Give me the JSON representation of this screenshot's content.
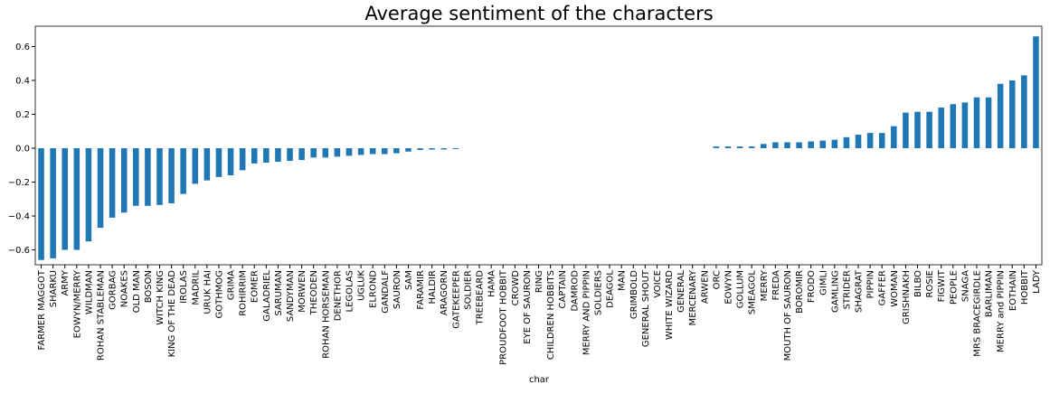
{
  "chart_data": {
    "type": "bar",
    "title": "Average sentiment of the characters",
    "xlabel": "char",
    "color": "#1f77b4",
    "categories": [
      "FARMER MAGGOT",
      "SHARKU",
      "ARMY",
      "EOWYN/MERRY",
      "WILDMAN",
      "ROHAN STABLEMAN",
      "GORBAG",
      "NOAKES",
      "OLD MAN",
      "BOSON",
      "WITCH KING",
      "KING OF THE DEAD",
      "IROLAS",
      "MADRIL",
      "URUK HAI",
      "GOTHMOG",
      "GRIMA",
      "ROHIRRIM",
      "EOMER",
      "GALADRIEL",
      "SARUMAN",
      "SANDYMAN",
      "MORWEN",
      "THEODEN",
      "ROHAN HORSEMAN",
      "DENETHOR",
      "LEGOLAS",
      "UGLUK",
      "ELROND",
      "GANDALF",
      "SAURON",
      "SAM",
      "FARAMIR",
      "HALDIR",
      "ARAGORN",
      "GATEKEEPER",
      "SOLDIER",
      "TREEBEARD",
      "HAMA",
      "PROUDFOOT HOBBIT",
      "CROWD",
      "EYE OF SAURON",
      "RING",
      "CHILDREN HOBBITS",
      "CAPTAIN",
      "DAMROD",
      "MERRY AND PIPPIN",
      "SOLDIERS",
      "DEAGOL",
      "MAN",
      "GRIMBOLD",
      "GENERAL SHOUT",
      "VOICE",
      "WHITE WIZARD",
      "GENERAL",
      "MERCENARY",
      "ARWEN",
      "ORC",
      "EOWYN",
      "GOLLUM",
      "SMEAGOL",
      "MERRY",
      "FREDA",
      "MOUTH OF SAURON",
      "BOROMIR",
      "FRODO",
      "GIMLI",
      "GAMLING",
      "STRIDER",
      "SHAGRAT",
      "PIPPIN",
      "GAFFER",
      "WOMAN",
      "GRISHNAKH",
      "BILBO",
      "ROSIE",
      "FIGWIT",
      "PEOPLE",
      "SNAGA",
      "MRS BRACEGIRDLE",
      "BARLIMAN",
      "MERRY and PIPPIN",
      "EOTHAIN",
      "HOBBIT",
      "LADY"
    ],
    "values": [
      -0.66,
      -0.65,
      -0.6,
      -0.6,
      -0.55,
      -0.47,
      -0.41,
      -0.38,
      -0.34,
      -0.34,
      -0.335,
      -0.325,
      -0.27,
      -0.21,
      -0.19,
      -0.17,
      -0.16,
      -0.13,
      -0.09,
      -0.085,
      -0.08,
      -0.075,
      -0.07,
      -0.055,
      -0.055,
      -0.05,
      -0.045,
      -0.04,
      -0.035,
      -0.035,
      -0.03,
      -0.02,
      -0.01,
      -0.008,
      -0.007,
      -0.005,
      0,
      0,
      0,
      0,
      0,
      0,
      0,
      0,
      0,
      0,
      0,
      0,
      0,
      0,
      0,
      0,
      0,
      0,
      0,
      0,
      0,
      0.01,
      0.01,
      0.01,
      0.01,
      0.025,
      0.035,
      0.035,
      0.035,
      0.04,
      0.045,
      0.05,
      0.065,
      0.08,
      0.09,
      0.09,
      0.13,
      0.21,
      0.215,
      0.215,
      0.24,
      0.26,
      0.27,
      0.3,
      0.3,
      0.38,
      0.4,
      0.43,
      0.66
    ],
    "ylim": [
      -0.688,
      0.72
    ],
    "yticks": [
      {
        "value": -0.6,
        "label": "−0.6"
      },
      {
        "value": -0.4,
        "label": "−0.4"
      },
      {
        "value": -0.2,
        "label": "−0.2"
      },
      {
        "value": 0,
        "label": "0.0"
      },
      {
        "value": 0.2,
        "label": "0.2"
      },
      {
        "value": 0.4,
        "label": "0.4"
      },
      {
        "value": 0.6,
        "label": "0.6"
      }
    ]
  }
}
